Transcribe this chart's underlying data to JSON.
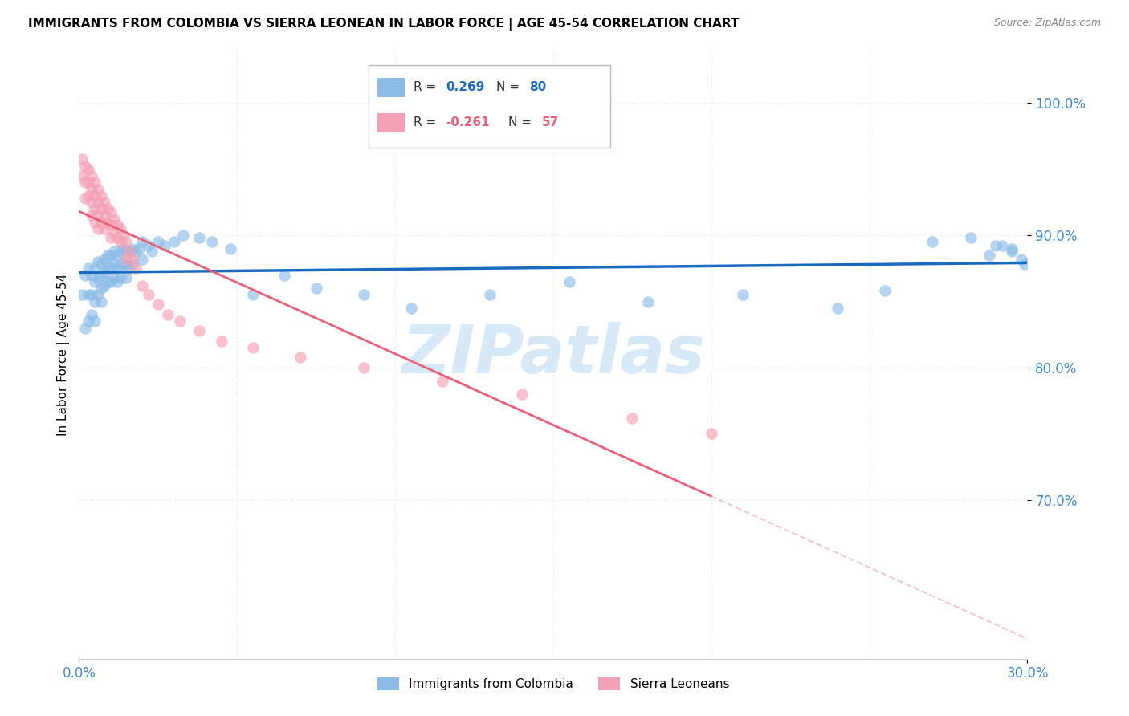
{
  "title": "IMMIGRANTS FROM COLOMBIA VS SIERRA LEONEAN IN LABOR FORCE | AGE 45-54 CORRELATION CHART",
  "source": "Source: ZipAtlas.com",
  "ylabel": "In Labor Force | Age 45-54",
  "xlim": [
    0.0,
    0.3
  ],
  "ylim": [
    0.58,
    1.04
  ],
  "ytick_positions": [
    0.7,
    0.8,
    0.9,
    1.0
  ],
  "ytick_labels": [
    "70.0%",
    "80.0%",
    "90.0%",
    "100.0%"
  ],
  "xtick_positions": [
    0.0,
    0.3
  ],
  "xtick_labels": [
    "0.0%",
    "30.0%"
  ],
  "legend_R1": "0.269",
  "legend_N1": "80",
  "legend_R2": "-0.261",
  "legend_N2": "57",
  "color_colombia": "#8BBCE8",
  "color_sierra": "#F4A0B5",
  "color_line_colombia": "#1A6BBF",
  "color_line_sierra": "#E8607A",
  "color_trendline_ext_sierra": "#F0C8D0",
  "tick_label_color": "#4488CC",
  "watermark_color": "#D0E4F5",
  "grid_color": "#E8E8E8",
  "background_color": "#FFFFFF",
  "colombia_x": [
    0.001,
    0.002,
    0.002,
    0.003,
    0.003,
    0.003,
    0.004,
    0.004,
    0.004,
    0.005,
    0.005,
    0.005,
    0.005,
    0.006,
    0.006,
    0.006,
    0.007,
    0.007,
    0.007,
    0.007,
    0.008,
    0.008,
    0.008,
    0.009,
    0.009,
    0.009,
    0.01,
    0.01,
    0.01,
    0.011,
    0.011,
    0.011,
    0.012,
    0.012,
    0.012,
    0.013,
    0.013,
    0.013,
    0.014,
    0.014,
    0.015,
    0.015,
    0.015,
    0.016,
    0.016,
    0.017,
    0.017,
    0.018,
    0.019,
    0.02,
    0.02,
    0.022,
    0.023,
    0.025,
    0.027,
    0.03,
    0.033,
    0.038,
    0.042,
    0.048,
    0.055,
    0.065,
    0.075,
    0.09,
    0.105,
    0.13,
    0.155,
    0.18,
    0.21,
    0.24,
    0.255,
    0.27,
    0.282,
    0.29,
    0.295,
    0.298,
    0.299,
    0.295,
    0.292,
    0.288
  ],
  "colombia_y": [
    0.855,
    0.87,
    0.83,
    0.875,
    0.855,
    0.835,
    0.87,
    0.855,
    0.84,
    0.875,
    0.865,
    0.85,
    0.835,
    0.88,
    0.868,
    0.855,
    0.878,
    0.87,
    0.86,
    0.85,
    0.882,
    0.872,
    0.862,
    0.885,
    0.875,
    0.865,
    0.885,
    0.875,
    0.865,
    0.888,
    0.878,
    0.868,
    0.885,
    0.875,
    0.865,
    0.888,
    0.878,
    0.868,
    0.89,
    0.878,
    0.888,
    0.878,
    0.868,
    0.888,
    0.875,
    0.89,
    0.878,
    0.888,
    0.89,
    0.895,
    0.882,
    0.892,
    0.888,
    0.895,
    0.892,
    0.895,
    0.9,
    0.898,
    0.895,
    0.89,
    0.855,
    0.87,
    0.86,
    0.855,
    0.845,
    0.855,
    0.865,
    0.85,
    0.855,
    0.845,
    0.858,
    0.895,
    0.898,
    0.892,
    0.888,
    0.882,
    0.878,
    0.89,
    0.892,
    0.885
  ],
  "sierra_x": [
    0.001,
    0.001,
    0.002,
    0.002,
    0.002,
    0.003,
    0.003,
    0.003,
    0.004,
    0.004,
    0.004,
    0.004,
    0.005,
    0.005,
    0.005,
    0.005,
    0.006,
    0.006,
    0.006,
    0.006,
    0.007,
    0.007,
    0.007,
    0.008,
    0.008,
    0.008,
    0.009,
    0.009,
    0.01,
    0.01,
    0.01,
    0.011,
    0.011,
    0.012,
    0.012,
    0.013,
    0.013,
    0.014,
    0.015,
    0.015,
    0.016,
    0.017,
    0.018,
    0.02,
    0.022,
    0.025,
    0.028,
    0.032,
    0.038,
    0.045,
    0.055,
    0.07,
    0.09,
    0.115,
    0.14,
    0.175,
    0.2
  ],
  "sierra_y": [
    0.958,
    0.945,
    0.952,
    0.94,
    0.928,
    0.95,
    0.94,
    0.93,
    0.945,
    0.935,
    0.925,
    0.915,
    0.94,
    0.93,
    0.92,
    0.91,
    0.935,
    0.925,
    0.915,
    0.905,
    0.93,
    0.92,
    0.91,
    0.925,
    0.915,
    0.905,
    0.92,
    0.91,
    0.918,
    0.908,
    0.898,
    0.912,
    0.902,
    0.908,
    0.898,
    0.905,
    0.895,
    0.9,
    0.895,
    0.882,
    0.888,
    0.882,
    0.875,
    0.862,
    0.855,
    0.848,
    0.84,
    0.835,
    0.828,
    0.82,
    0.815,
    0.808,
    0.8,
    0.79,
    0.78,
    0.762,
    0.75
  ]
}
